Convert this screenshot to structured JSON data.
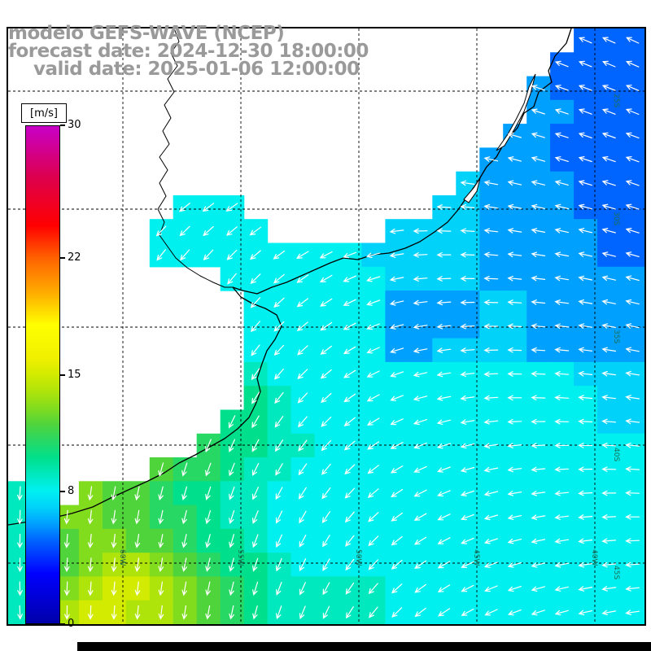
{
  "title": {
    "line1": "modelo GEFS-WAVE (NCEP)",
    "line2": "forecast date: 2024-12-30 18:00:00",
    "line3": "valid date: 2025-01-06 12:00:00"
  },
  "colorbar": {
    "unit_label": "[m/s]",
    "min": 0,
    "max": 30,
    "ticks": [
      30,
      22,
      15,
      8,
      0
    ]
  },
  "map": {
    "grid_labels": {
      "lon": [
        "60W",
        "55W",
        "50W",
        "45W",
        "40W"
      ],
      "lat": [
        "25S",
        "30S",
        "35S",
        "40S",
        "45S"
      ]
    }
  },
  "chart_data": {
    "type": "heatmap",
    "title": "modelo GEFS-WAVE (NCEP)",
    "forecast_date": "2024-12-30 18:00:00",
    "valid_date": "2025-01-06 12:00:00",
    "units": "m/s",
    "scale_range": [
      0,
      30
    ],
    "scale_ticks": [
      0,
      8,
      15,
      22,
      30
    ],
    "legend_position": "left",
    "grid_on": true,
    "colormap_stops": [
      {
        "v": 0,
        "c": "#0000aa"
      },
      {
        "v": 3,
        "c": "#0000ff"
      },
      {
        "v": 5,
        "c": "#0064ff"
      },
      {
        "v": 6,
        "c": "#00a0ff"
      },
      {
        "v": 7,
        "c": "#00d2fa"
      },
      {
        "v": 8,
        "c": "#00f0f0"
      },
      {
        "v": 9,
        "c": "#00e8be"
      },
      {
        "v": 10,
        "c": "#00e08c"
      },
      {
        "v": 11,
        "c": "#28d864"
      },
      {
        "v": 12,
        "c": "#50d43c"
      },
      {
        "v": 13,
        "c": "#82dc1e"
      },
      {
        "v": 14,
        "c": "#afe40a"
      },
      {
        "v": 15,
        "c": "#d2eb00"
      },
      {
        "v": 16,
        "c": "#f0f000"
      },
      {
        "v": 18,
        "c": "#ffff00"
      },
      {
        "v": 20,
        "c": "#ffaa00"
      },
      {
        "v": 22,
        "c": "#ff6400"
      },
      {
        "v": 24,
        "c": "#ff0000"
      },
      {
        "v": 27,
        "c": "#dc0050"
      },
      {
        "v": 30,
        "c": "#c800c8"
      }
    ],
    "grid": {
      "cols": 27,
      "rows": 25,
      "encoding": ". = land/no-data; 0-9 = wind speed m/s; a-g = 10-16 m/s",
      "rows_encoded": [
        "........................555",
        ".......................5555",
        "......................65555",
        "......................66555",
        ".....................665555",
        "....................6665555",
        "...................76666555",
        ".......888........776666555",
        "......88888.....77776666655",
        "......888888888777776666655",
        ".........888888877776666666",
        "..........88888866667766666",
        "..........88888866667766666",
        "..........88888866777766666",
        "..........98888888888888777",
        "..........a9888888888888877",
        ".........aa9888888888888877",
        "........baa9988888888888888",
        "......cbba99888888888888888",
        "9..dccbaa998888888888888888",
        "9.ddccbba998888888888888888",
        "9bcddccbaa98888888888888888",
        "9acdeedcbaa9888888888888888",
        "9bdeffedcba9999988888888888",
        "9beffeedcba9999988888888888"
      ]
    },
    "wind_direction_deg": {
      "convention": "degrees clockwise from screen-east; arrow points toward",
      "col_anchors": [
        0,
        4,
        9,
        13,
        17,
        21,
        26
      ],
      "row_anchors": [
        0,
        5,
        10,
        15,
        20,
        24
      ],
      "grid": [
        [
          150,
          150,
          160,
          170,
          190,
          200,
          205
        ],
        [
          140,
          145,
          155,
          165,
          185,
          195,
          200
        ],
        [
          115,
          120,
          130,
          150,
          175,
          185,
          195
        ],
        [
          100,
          108,
          118,
          138,
          165,
          180,
          188
        ],
        [
          92,
          98,
          108,
          124,
          150,
          168,
          180
        ],
        [
          88,
          94,
          102,
          116,
          142,
          160,
          172
        ]
      ]
    },
    "graticule": {
      "lon_labels": [
        "60W",
        "55W",
        "50W",
        "45W",
        "40W"
      ],
      "lat_labels": [
        "25S",
        "30S",
        "35S",
        "40S",
        "45S"
      ]
    }
  }
}
